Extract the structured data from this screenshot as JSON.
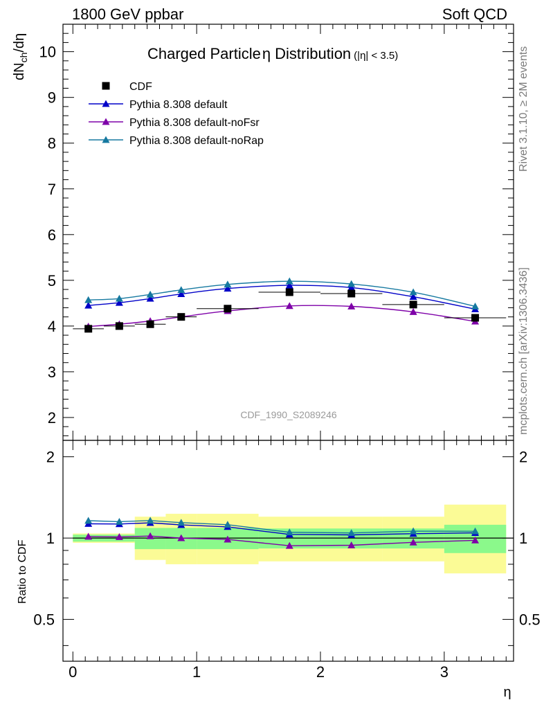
{
  "header": {
    "left": "1800 GeV ppbar",
    "right": "Soft QCD"
  },
  "side_text": {
    "top": "Rivet 3.1.10, ≥ 2M events",
    "bottom": "mcplots.cern.ch [arXiv:1306.3436]"
  },
  "chart_data": {
    "type": "line",
    "title": "Charged Particle",
    "title_symbol": "η",
    "title_tail": "Distribution",
    "subtitle": "(|η| < 3.5)",
    "analysis_label": "CDF_1990_S2089246",
    "xlabel": "η",
    "ylabel_main": "dN",
    "ylabel_sub": "ch",
    "ylabel_tail": "/dη",
    "ratio_ylabel": "Ratio to CDF",
    "xlim": [
      -0.08,
      3.56
    ],
    "ylim": [
      1.5,
      10.6
    ],
    "ratio_ylim": [
      0.35,
      2.3
    ],
    "ratio_scale": "log",
    "x_ticks": [
      0,
      1,
      2,
      3
    ],
    "y_ticks": [
      2,
      3,
      4,
      5,
      6,
      7,
      8,
      9,
      10
    ],
    "ratio_ticks": [
      0.5,
      1,
      2
    ],
    "legend_position": "top-left",
    "data": {
      "name": "CDF",
      "color": "#000000",
      "marker": "square",
      "bins": [
        [
          0.0,
          0.25
        ],
        [
          0.25,
          0.5
        ],
        [
          0.5,
          0.75
        ],
        [
          0.75,
          1.0
        ],
        [
          1.0,
          1.5
        ],
        [
          1.5,
          2.0
        ],
        [
          2.0,
          2.5
        ],
        [
          2.5,
          3.0
        ],
        [
          3.0,
          3.5
        ]
      ],
      "x": [
        0.125,
        0.375,
        0.625,
        0.875,
        1.25,
        1.75,
        2.25,
        2.75,
        3.25
      ],
      "y": [
        3.94,
        4.0,
        4.04,
        4.2,
        4.38,
        4.74,
        4.71,
        4.47,
        4.18
      ],
      "band_inner_lo": [
        0.97,
        0.97,
        0.91,
        0.91,
        0.91,
        0.915,
        0.915,
        0.915,
        0.88
      ],
      "band_inner_hi": [
        1.03,
        1.03,
        1.09,
        1.09,
        1.09,
        1.085,
        1.085,
        1.085,
        1.12
      ],
      "band_outer_lo": [
        0.96,
        0.96,
        0.83,
        0.8,
        0.8,
        0.82,
        0.82,
        0.82,
        0.74
      ],
      "band_outer_hi": [
        1.04,
        1.04,
        1.2,
        1.23,
        1.23,
        1.2,
        1.2,
        1.2,
        1.33
      ]
    },
    "series": [
      {
        "name": "Pythia 8.308 default",
        "color": "#0000c8",
        "y": [
          4.45,
          4.51,
          4.6,
          4.7,
          4.82,
          4.89,
          4.84,
          4.64,
          4.37
        ]
      },
      {
        "name": "Pythia 8.308 default-noFsr",
        "color": "#7e00a8",
        "y": [
          3.99,
          4.04,
          4.11,
          4.2,
          4.33,
          4.44,
          4.43,
          4.31,
          4.1
        ]
      },
      {
        "name": "Pythia 8.308 default-noRap",
        "color": "#1679a0",
        "y": [
          4.57,
          4.6,
          4.69,
          4.79,
          4.91,
          4.98,
          4.92,
          4.74,
          4.43
        ]
      }
    ],
    "colors": {
      "band_inner": "#8bf98b",
      "band_outer": "#fbfb96"
    }
  }
}
